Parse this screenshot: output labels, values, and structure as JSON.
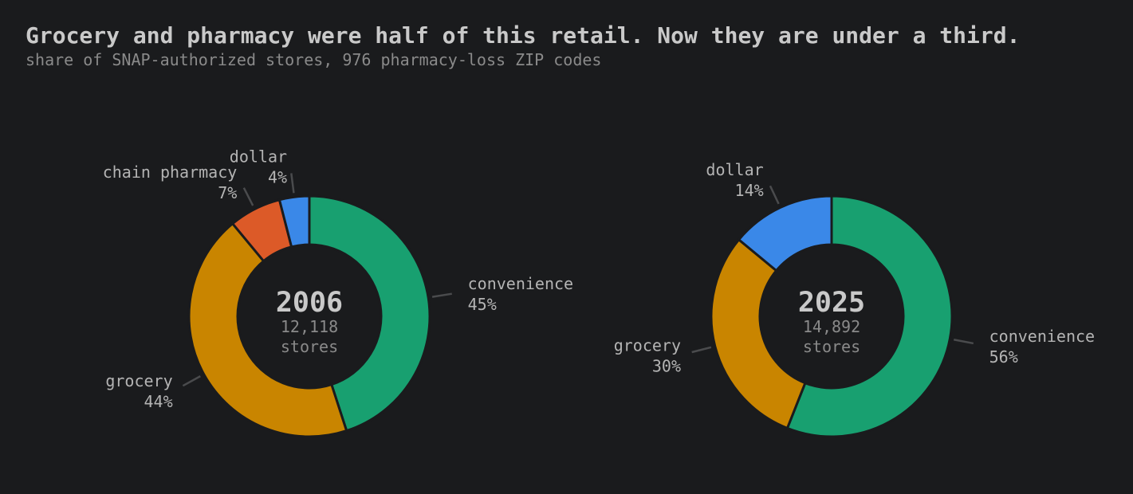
{
  "title": "Grocery and pharmacy were half of this retail. Now they are under a third.",
  "subtitle": "share of SNAP-authorized stores, 976 pharmacy-loss ZIP codes",
  "colors": {
    "convenience": "#18a070",
    "grocery": "#c98500",
    "chain pharmacy": "#dc5a28",
    "dollar": "#3a88e8",
    "background": "#1a1b1d"
  },
  "chart_data": [
    {
      "type": "pie",
      "center_title": "2006",
      "center_lines": [
        "12,118",
        "stores"
      ],
      "slices": [
        {
          "name": "convenience",
          "value": 45,
          "label": "45%"
        },
        {
          "name": "grocery",
          "value": 44,
          "label": "44%"
        },
        {
          "name": "chain pharmacy",
          "value": 7,
          "label": "7%"
        },
        {
          "name": "dollar",
          "value": 4,
          "label": "4%"
        }
      ]
    },
    {
      "type": "pie",
      "center_title": "2025",
      "center_lines": [
        "14,892",
        "stores"
      ],
      "slices": [
        {
          "name": "convenience",
          "value": 56,
          "label": "56%"
        },
        {
          "name": "grocery",
          "value": 30,
          "label": "30%"
        },
        {
          "name": "dollar",
          "value": 14,
          "label": "14%"
        }
      ]
    }
  ]
}
